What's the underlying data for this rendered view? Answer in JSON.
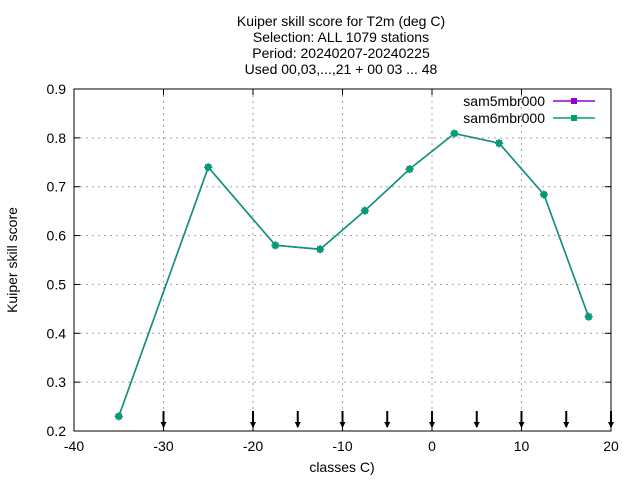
{
  "chart_data": {
    "type": "line",
    "title_lines": [
      "Kuiper skill score  for T2m (deg C)",
      "Selection: ALL    1079 stations",
      "Period: 20240207-20240225",
      "Used 00,03,...,21 + 00 03 ... 48"
    ],
    "xlabel": "classes C)",
    "ylabel": "Kuiper skill score",
    "xlim": [
      -40,
      20
    ],
    "ylim": [
      0.2,
      0.9
    ],
    "xticks": [
      -40,
      -30,
      -20,
      -10,
      0,
      10,
      20
    ],
    "yticks": [
      0.2,
      0.3,
      0.4,
      0.5,
      0.6,
      0.7,
      0.8,
      0.9
    ],
    "xtick_labels": [
      "-40",
      "-30",
      "-20",
      "-10",
      "0",
      "10",
      "20"
    ],
    "ytick_labels": [
      "0.2",
      "0.3",
      "0.4",
      "0.5",
      "0.6",
      "0.7",
      "0.8",
      "0.9"
    ],
    "grid": true,
    "legend_position": "top-right",
    "class_markers": [
      -30,
      -20,
      -15,
      -10,
      -5,
      0,
      5,
      10,
      15,
      20
    ],
    "series": [
      {
        "name": "sam5mbr000",
        "color": "#9400d3",
        "x": [
          -35,
          -25,
          -17.5,
          -12.5,
          -7.5,
          -2.5,
          2.5,
          7.5,
          12.5,
          17.5
        ],
        "y": [
          0.23,
          0.74,
          0.58,
          0.572,
          0.651,
          0.736,
          0.809,
          0.789,
          0.684,
          0.434
        ]
      },
      {
        "name": "sam6mbr000",
        "color": "#009e73",
        "x": [
          -35,
          -25,
          -17.5,
          -12.5,
          -7.5,
          -2.5,
          2.5,
          7.5,
          12.5,
          17.5
        ],
        "y": [
          0.23,
          0.74,
          0.58,
          0.572,
          0.651,
          0.736,
          0.809,
          0.789,
          0.684,
          0.434
        ]
      }
    ]
  }
}
